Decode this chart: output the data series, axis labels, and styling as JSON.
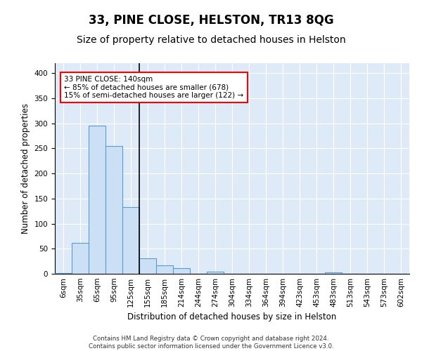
{
  "title": "33, PINE CLOSE, HELSTON, TR13 8QG",
  "subtitle": "Size of property relative to detached houses in Helston",
  "xlabel": "Distribution of detached houses by size in Helston",
  "ylabel": "Number of detached properties",
  "bar_color": "#cce0f5",
  "bar_edge_color": "#5b9bd5",
  "background_color": "#deeaf7",
  "categories": [
    "6sqm",
    "35sqm",
    "65sqm",
    "95sqm",
    "125sqm",
    "155sqm",
    "185sqm",
    "214sqm",
    "244sqm",
    "274sqm",
    "304sqm",
    "334sqm",
    "364sqm",
    "394sqm",
    "423sqm",
    "453sqm",
    "483sqm",
    "513sqm",
    "543sqm",
    "573sqm",
    "602sqm"
  ],
  "values": [
    2,
    62,
    295,
    255,
    133,
    31,
    17,
    11,
    0,
    4,
    0,
    0,
    0,
    0,
    0,
    0,
    3,
    0,
    0,
    0,
    0
  ],
  "ylim": [
    0,
    420
  ],
  "yticks": [
    0,
    50,
    100,
    150,
    200,
    250,
    300,
    350,
    400
  ],
  "annotation_line1": "33 PINE CLOSE: 140sqm",
  "annotation_line2": "← 85% of detached houses are smaller (678)",
  "annotation_line3": "15% of semi-detached houses are larger (122) →",
  "vline_x": 4.5,
  "grid_color": "#ffffff",
  "title_fontsize": 12,
  "subtitle_fontsize": 10,
  "axis_label_fontsize": 8.5,
  "tick_fontsize": 7.5,
  "footer_line1": "Contains HM Land Registry data © Crown copyright and database right 2024.",
  "footer_line2": "Contains public sector information licensed under the Government Licence v3.0."
}
